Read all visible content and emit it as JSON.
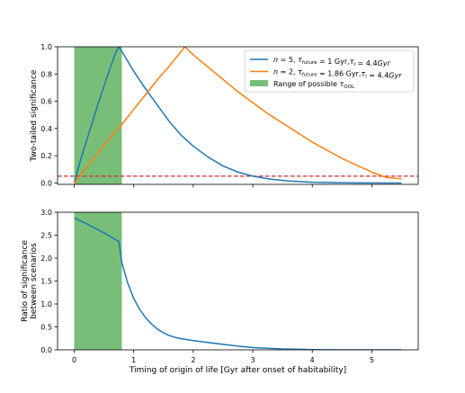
{
  "chart_data": [
    {
      "type": "line",
      "xlim": [
        -0.28,
        5.78
      ],
      "ylim": [
        -0.01,
        1.0
      ],
      "ylabel": "Two-tailed significance",
      "xlabel": "",
      "grid": false,
      "legend_position": "top-right",
      "xticks": [
        0,
        1,
        2,
        3,
        4,
        5
      ],
      "show_xtick_labels": false,
      "yticks": [
        0.0,
        0.2,
        0.4,
        0.6,
        0.8,
        1.0
      ],
      "ytick_labels": [
        "0.0",
        "0.2",
        "0.4",
        "0.6",
        "0.8",
        "1.0"
      ],
      "shaded_range": {
        "x0": 0.0,
        "x1": 0.8,
        "color": "#78be78"
      },
      "hline": {
        "y": 0.05,
        "color": "#d62728",
        "style": "dashed"
      },
      "series": [
        {
          "name": "n = 5, τ_future = 1 Gyr, τ_l = 4.4Gyr",
          "color": "#1f77b4",
          "x": [
            0.0,
            0.1,
            0.2,
            0.3,
            0.4,
            0.5,
            0.6,
            0.7,
            0.75,
            0.85,
            1.0,
            1.2,
            1.4,
            1.6,
            1.8,
            2.0,
            2.25,
            2.5,
            2.75,
            3.0,
            3.3,
            3.6,
            4.0,
            4.4,
            4.8,
            5.2,
            5.5
          ],
          "y": [
            0.0,
            0.16,
            0.3,
            0.44,
            0.58,
            0.71,
            0.84,
            0.96,
            1.0,
            0.93,
            0.82,
            0.69,
            0.57,
            0.45,
            0.35,
            0.27,
            0.19,
            0.125,
            0.08,
            0.05,
            0.028,
            0.015,
            0.006,
            0.002,
            0.0005,
            0.0001,
            0.0
          ]
        },
        {
          "name": "n = 2, τ_future = 1.86 Gyr, τ_l = 4.4Gyr",
          "color": "#ff7f0e",
          "x": [
            0.0,
            0.2,
            0.4,
            0.6,
            0.8,
            1.0,
            1.2,
            1.4,
            1.6,
            1.86,
            2.0,
            2.25,
            2.5,
            2.75,
            3.0,
            3.25,
            3.5,
            3.75,
            4.0,
            4.25,
            4.5,
            4.75,
            5.0,
            5.25,
            5.5
          ],
          "y": [
            0.0,
            0.11,
            0.22,
            0.33,
            0.43,
            0.54,
            0.65,
            0.76,
            0.86,
            1.0,
            0.94,
            0.85,
            0.76,
            0.67,
            0.59,
            0.51,
            0.44,
            0.37,
            0.3,
            0.24,
            0.18,
            0.13,
            0.08,
            0.04,
            0.03
          ]
        }
      ],
      "legend": {
        "entries": [
          {
            "kind": "line",
            "color": "#1f77b4",
            "parts": [
              {
                "t": "n",
                "style": "italic"
              },
              {
                "t": " = 5, "
              },
              {
                "t": "τ",
                "style": "italic"
              },
              {
                "t": "future",
                "sub": true
              },
              {
                "t": " = 1 Gyr,"
              },
              {
                "t": "τ",
                "style": "italic"
              },
              {
                "t": "l",
                "sub": true
              },
              {
                "t": " = 4.4"
              },
              {
                "t": "Gyr",
                "style": "italic"
              }
            ]
          },
          {
            "kind": "line",
            "color": "#ff7f0e",
            "parts": [
              {
                "t": "n",
                "style": "italic"
              },
              {
                "t": " = 2, "
              },
              {
                "t": "τ",
                "style": "italic"
              },
              {
                "t": "future",
                "sub": true
              },
              {
                "t": " = 1.86 Gyr,"
              },
              {
                "t": "τ",
                "style": "italic"
              },
              {
                "t": "l",
                "sub": true
              },
              {
                "t": " = 4.4"
              },
              {
                "t": "Gyr",
                "style": "italic"
              }
            ]
          },
          {
            "kind": "patch",
            "color": "#78be78",
            "parts": [
              {
                "t": "Range of possible "
              },
              {
                "t": "τ",
                "style": "italic"
              },
              {
                "t": "OOL",
                "sub": true
              }
            ]
          }
        ]
      }
    },
    {
      "type": "line",
      "xlim": [
        -0.28,
        5.78
      ],
      "ylim": [
        0.0,
        3.0
      ],
      "ylabel": "Ratio of significance\nbetween scenarios",
      "xlabel": "Timing of origin of life [Gyr after onset of habitability]",
      "grid": false,
      "xticks": [
        0,
        1,
        2,
        3,
        4,
        5
      ],
      "xtick_labels": [
        "0",
        "1",
        "2",
        "3",
        "4",
        "5"
      ],
      "show_xtick_labels": true,
      "yticks": [
        0.0,
        0.5,
        1.0,
        1.5,
        2.0,
        2.5,
        3.0
      ],
      "ytick_labels": [
        "0.0",
        "0.5",
        "1.0",
        "1.5",
        "2.0",
        "2.5",
        "3.0"
      ],
      "shaded_range": {
        "x0": 0.0,
        "x1": 0.8,
        "color": "#78be78"
      },
      "series": [
        {
          "name": "",
          "color": "#1f77b4",
          "x": [
            0.0,
            0.25,
            0.5,
            0.75,
            0.8,
            0.9,
            1.0,
            1.1,
            1.2,
            1.3,
            1.4,
            1.5,
            1.6,
            1.7,
            1.8,
            1.86,
            2.0,
            2.25,
            2.5,
            2.75,
            3.0,
            3.5,
            4.0,
            4.5,
            5.0,
            5.5
          ],
          "y": [
            2.88,
            2.72,
            2.55,
            2.36,
            1.9,
            1.45,
            1.12,
            0.88,
            0.7,
            0.56,
            0.45,
            0.37,
            0.31,
            0.27,
            0.24,
            0.23,
            0.2,
            0.16,
            0.12,
            0.08,
            0.05,
            0.02,
            0.005,
            0.001,
            0.0,
            0.0
          ]
        }
      ]
    }
  ]
}
